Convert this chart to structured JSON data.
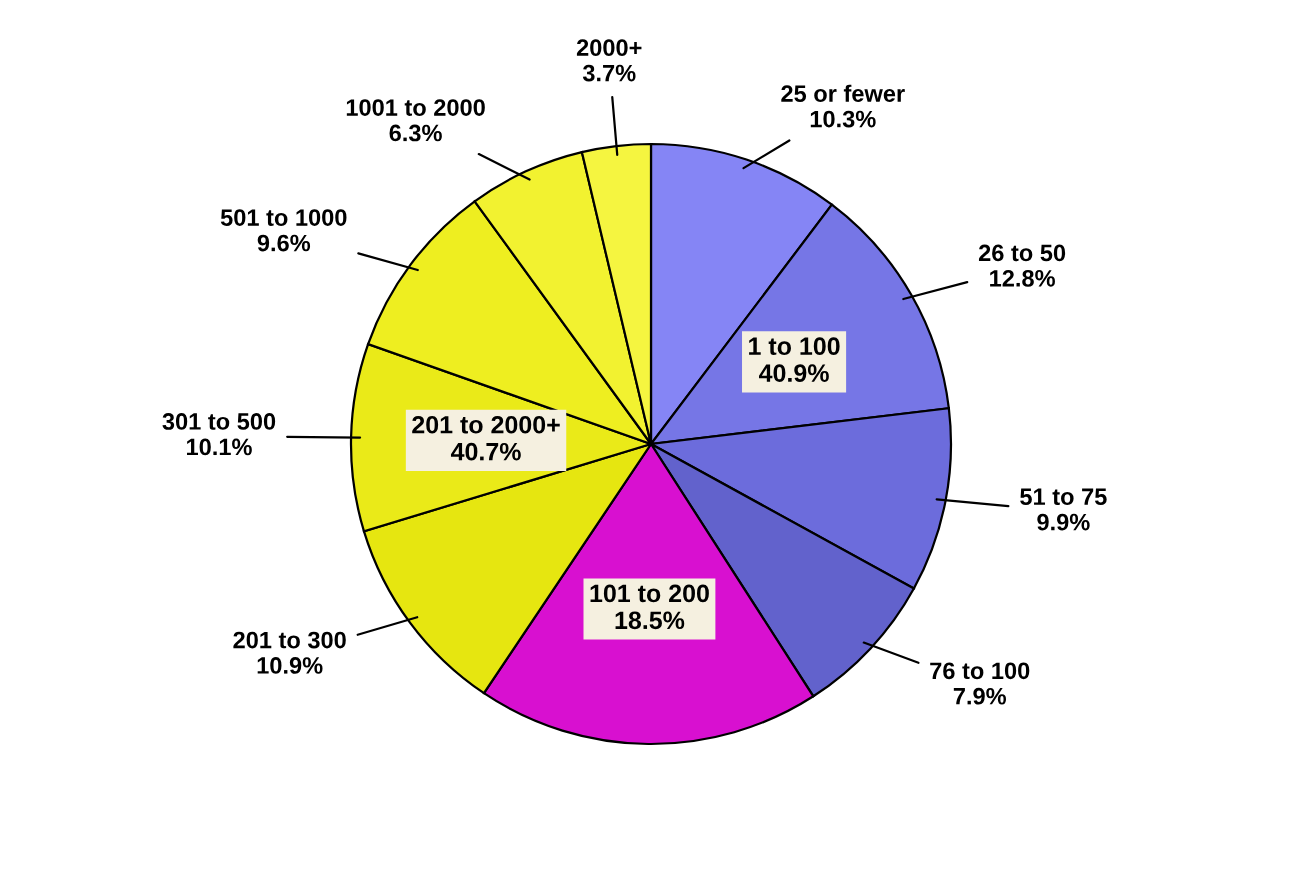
{
  "chart_data": {
    "type": "pie",
    "categories": [
      "25 or fewer",
      "26 to 50",
      "51 to 75",
      "76 to 100",
      "101 to 200",
      "201 to 300",
      "301 to 500",
      "501 to 1000",
      "1001 to 2000",
      "2000+"
    ],
    "values": [
      10.3,
      12.8,
      9.9,
      7.9,
      18.5,
      10.9,
      10.1,
      9.6,
      6.3,
      3.7
    ],
    "value_labels": [
      "10.3%",
      "12.8%",
      "9.9%",
      "7.9%",
      "18.5%",
      "10.9%",
      "10.1%",
      "9.6%",
      "6.3%",
      "3.7%"
    ],
    "colors": [
      "#8585f5",
      "#7676e6",
      "#6c6cdc",
      "#6262cc",
      "#d810d0",
      "#e6e610",
      "#eaea18",
      "#eeee20",
      "#f2f230",
      "#f5f540"
    ],
    "annotations": [
      {
        "text": "1 to 100\n40.9%",
        "x": "26 to 50"
      },
      {
        "text": "201 to 2000+\n40.7%",
        "x": "301 to 500"
      }
    ]
  }
}
